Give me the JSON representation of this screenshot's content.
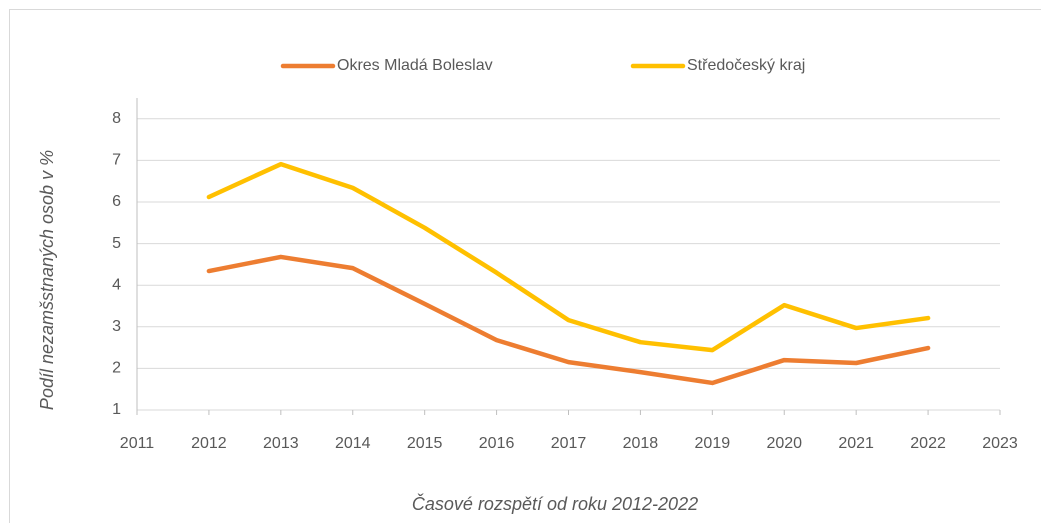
{
  "chart_data": {
    "type": "line",
    "x": [
      2012,
      2013,
      2014,
      2015,
      2016,
      2017,
      2018,
      2019,
      2020,
      2021,
      2022
    ],
    "series": [
      {
        "name": "Okres Mladá Boleslav",
        "color": "#ED7D31",
        "values": [
          4.34,
          4.68,
          4.41,
          3.55,
          2.68,
          2.15,
          1.91,
          1.65,
          2.2,
          2.13,
          2.49
        ]
      },
      {
        "name": "Středočeský kraj",
        "color": "#FFC000",
        "values": [
          6.12,
          6.91,
          6.34,
          5.38,
          4.3,
          3.16,
          2.63,
          2.44,
          3.52,
          2.97,
          3.21
        ]
      }
    ],
    "xlim": [
      2011,
      2023
    ],
    "xticks": [
      2011,
      2012,
      2013,
      2014,
      2015,
      2016,
      2017,
      2018,
      2019,
      2020,
      2021,
      2022,
      2023
    ],
    "ylim": [
      1,
      8.5
    ],
    "yticks": [
      1,
      2,
      3,
      4,
      5,
      6,
      7,
      8
    ],
    "grid": true,
    "ylabel": "Podíl nezamšstnaných osob v %",
    "xlabel": "Časové rozspětí od roku 2012-2022",
    "legend": "top"
  }
}
